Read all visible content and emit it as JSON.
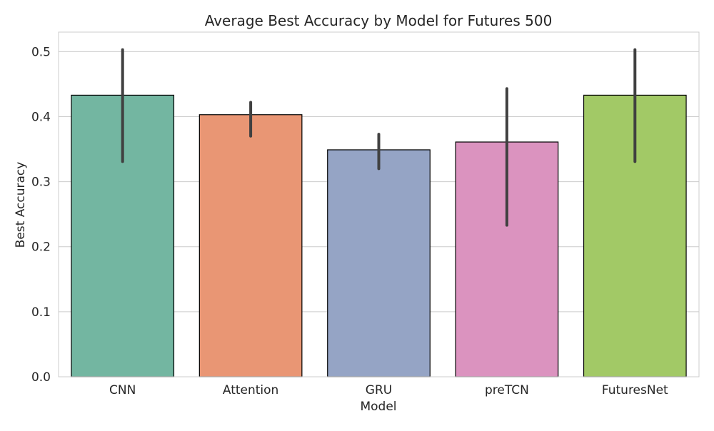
{
  "chart_data": {
    "type": "bar",
    "title": "Average Best Accuracy by Model for Futures 500",
    "xlabel": "Model",
    "ylabel": "Best Accuracy",
    "categories": [
      "CNN",
      "Attention",
      "GRU",
      "preTCN",
      "FuturesNet"
    ],
    "values": [
      0.433,
      0.403,
      0.349,
      0.361,
      0.433
    ],
    "error_low": [
      0.331,
      0.37,
      0.32,
      0.233,
      0.331
    ],
    "error_high": [
      0.503,
      0.422,
      0.373,
      0.443,
      0.503
    ],
    "colors": [
      "#73b6a1",
      "#e99674",
      "#95a4c5",
      "#db93bf",
      "#a2c966"
    ],
    "ylim": [
      0,
      0.53
    ],
    "yticks": [
      0.0,
      0.1,
      0.2,
      0.3,
      0.4,
      0.5
    ],
    "ytick_labels": [
      "0.0",
      "0.1",
      "0.2",
      "0.3",
      "0.4",
      "0.5"
    ],
    "grid": true,
    "error_bar_color": "#404040",
    "bar_edge_color": "#000000",
    "grid_color": "#cccccc"
  }
}
